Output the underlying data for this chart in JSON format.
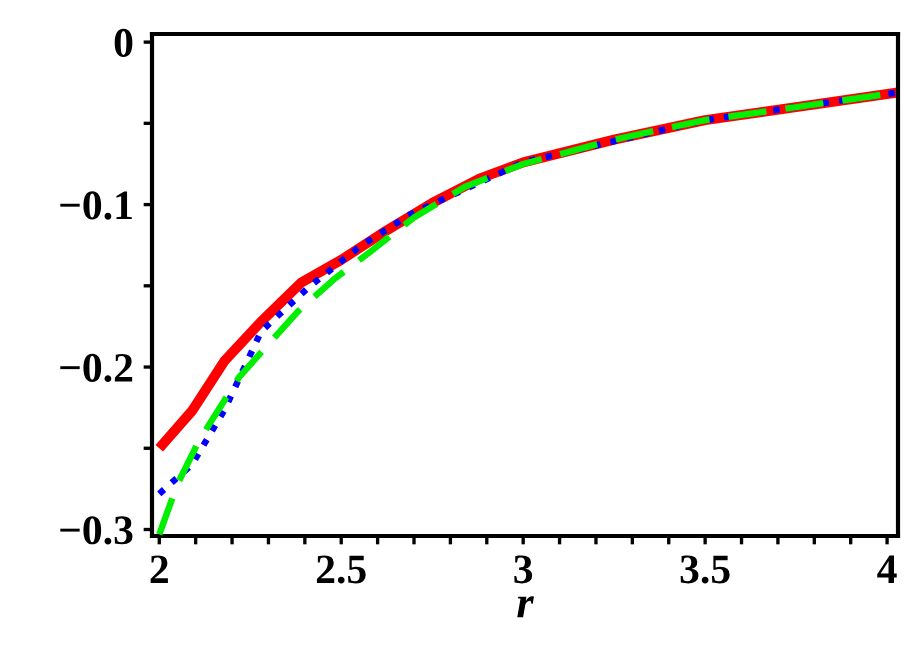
{
  "chart_data": {
    "type": "line",
    "xlabel": "r",
    "xlim": [
      1.98,
      4.03
    ],
    "ylim": [
      -0.304,
      0.005
    ],
    "xticks": [
      2,
      {
        "value": 2.1,
        "label": null
      },
      {
        "value": 2.2,
        "label": null
      },
      {
        "value": 2.3,
        "label": null
      },
      {
        "value": 2.4,
        "label": null
      },
      2.5,
      {
        "value": 2.6,
        "label": null
      },
      {
        "value": 2.7,
        "label": null
      },
      {
        "value": 2.8,
        "label": null
      },
      {
        "value": 2.9,
        "label": null
      },
      3,
      {
        "value": 3.1,
        "label": null
      },
      {
        "value": 3.2,
        "label": null
      },
      {
        "value": 3.3,
        "label": null
      },
      {
        "value": 3.4,
        "label": null
      },
      3.5,
      {
        "value": 3.6,
        "label": null
      },
      {
        "value": 3.7,
        "label": null
      },
      {
        "value": 3.8,
        "label": null
      },
      {
        "value": 3.9,
        "label": null
      },
      4
    ],
    "yticks": [
      {
        "value": -0.3,
        "label": "−0.3"
      },
      {
        "value": -0.25,
        "label": null
      },
      {
        "value": -0.2,
        "label": "−0.2"
      },
      {
        "value": -0.15,
        "label": null
      },
      {
        "value": -0.1,
        "label": "−0.1"
      },
      {
        "value": -0.05,
        "label": null
      },
      0
    ],
    "series": [
      {
        "color": "#ff0000",
        "line_style": "solid",
        "x": [
          2,
          2.09,
          2.18,
          2.28,
          2.39,
          2.5,
          2.61,
          2.75,
          2.88,
          3,
          3.25,
          3.5,
          3.75,
          4.03
        ],
        "values": [
          -0.25,
          -0.227,
          -0.196,
          -0.172,
          -0.148,
          -0.134,
          -0.118,
          -0.099,
          -0.084,
          -0.074,
          -0.06,
          -0.048,
          -0.04,
          -0.031
        ]
      },
      {
        "color": "#0000ff",
        "line_style": "dotted",
        "x": [
          2,
          2.09,
          2.18,
          2.28,
          2.41,
          2.55,
          2.69,
          3,
          3.5,
          4.03
        ],
        "values": [
          -0.278,
          -0.26,
          -0.226,
          -0.178,
          -0.151,
          -0.126,
          -0.106,
          -0.074,
          -0.048,
          -0.031
        ]
      },
      {
        "color": "#00ee00",
        "line_style": "dashed",
        "x": [
          2,
          2.05,
          2.11,
          2.22,
          2.38,
          2.48,
          2.58,
          2.7,
          2.84,
          3,
          3.25,
          3.5,
          3.75,
          4.03
        ],
        "values": [
          -0.303,
          -0.272,
          -0.245,
          -0.206,
          -0.166,
          -0.146,
          -0.129,
          -0.108,
          -0.089,
          -0.075,
          -0.06,
          -0.048,
          -0.04,
          -0.031
        ]
      }
    ]
  }
}
